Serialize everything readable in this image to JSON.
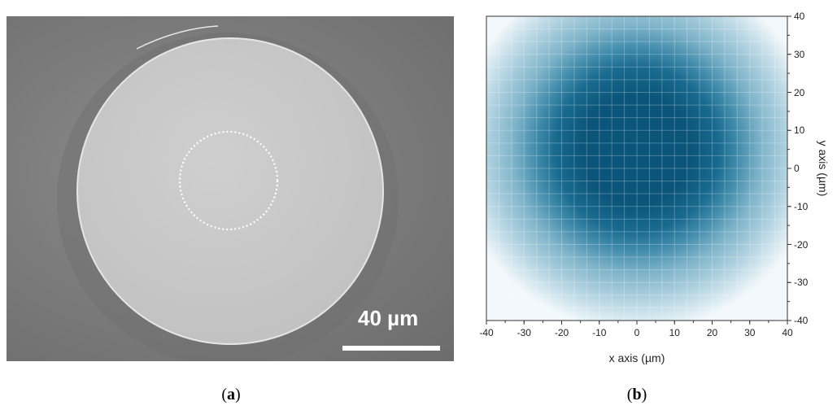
{
  "panel_a": {
    "scale_bar_label": "40 µm",
    "caption_open": "(",
    "caption_letter": "a",
    "caption_close": ")"
  },
  "panel_b": {
    "caption_open": "(",
    "caption_letter": "b",
    "caption_close": ")"
  },
  "chart_data": {
    "type": "heatmap",
    "title": "",
    "xlabel": "x axis (µm)",
    "ylabel": "y axis (µm)",
    "xlim": [
      -40,
      40
    ],
    "ylim": [
      -40,
      40
    ],
    "x_ticks": [
      "-40",
      "-30",
      "-20",
      "-10",
      "0",
      "10",
      "20",
      "30",
      "40"
    ],
    "y_ticks": [
      "40",
      "30",
      "20",
      "10",
      "0",
      "-10",
      "-20",
      "-30",
      "-40"
    ],
    "grid": true,
    "colormap": [
      "#f2f8fb",
      "#b9d7e4",
      "#7eb3c9",
      "#3f8aaa",
      "#1a6a8f",
      "#0b557a"
    ],
    "spot_center": [
      0,
      5
    ],
    "spot_radius": 22
  }
}
